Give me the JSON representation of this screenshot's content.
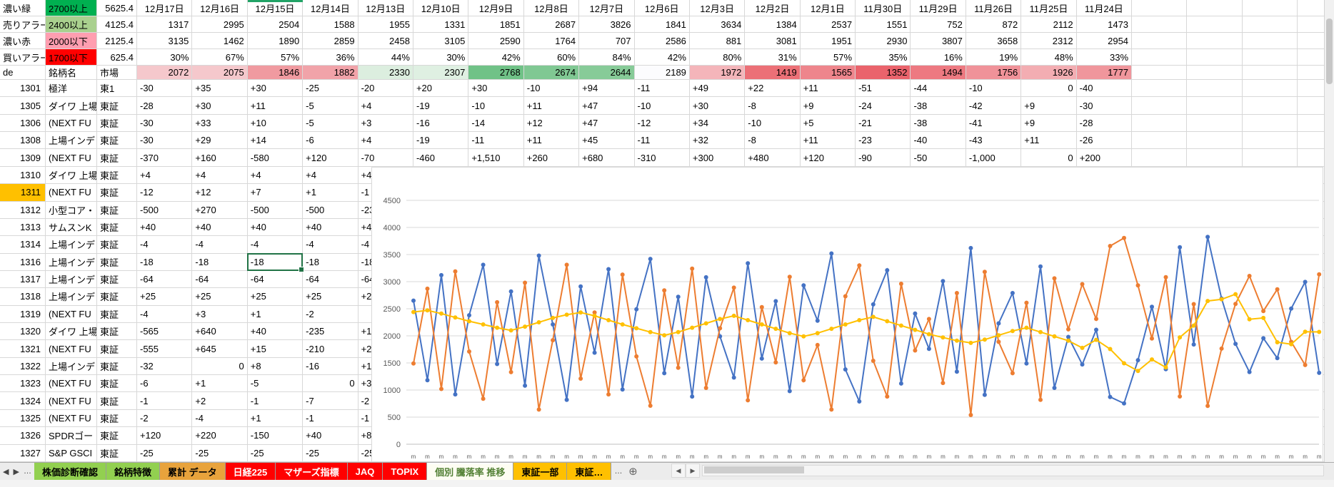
{
  "top_section": {
    "legend_rows": [
      {
        "label": "濃い緑",
        "threshold": "2700以上",
        "threshold_bg": "#00B050",
        "value": "5625.4"
      },
      {
        "label": "売りアラー",
        "threshold": "2400以上",
        "threshold_bg": "#A9D08E",
        "value": "4125.4"
      },
      {
        "label": "濃い赤",
        "threshold": "2000以下",
        "threshold_bg": "#FF9EB0",
        "value": "2125.4"
      },
      {
        "label": "買いアラー",
        "threshold": "1700以下",
        "threshold_bg": "#FF0000",
        "value": "625.4"
      }
    ],
    "dates": [
      "12月17日",
      "12月16日",
      "12月15日",
      "12月14日",
      "12月13日",
      "12月10日",
      "12月9日",
      "12月8日",
      "12月7日",
      "12月6日",
      "12月3日",
      "12月2日",
      "12月1日",
      "11月30日",
      "11月29日",
      "11月26日",
      "11月25日",
      "11月24日"
    ],
    "advancers": [
      "1317",
      "2995",
      "2504",
      "1588",
      "1955",
      "1331",
      "1851",
      "2687",
      "3826",
      "1841",
      "3634",
      "1384",
      "2537",
      "1551",
      "752",
      "872",
      "2112",
      "1473"
    ],
    "decliners": [
      "3135",
      "1462",
      "1890",
      "2859",
      "2458",
      "3105",
      "2590",
      "1764",
      "707",
      "2586",
      "881",
      "3081",
      "1951",
      "2930",
      "3807",
      "3658",
      "2312",
      "2954"
    ],
    "percents": [
      "30%",
      "67%",
      "57%",
      "36%",
      "44%",
      "30%",
      "42%",
      "60%",
      "84%",
      "42%",
      "80%",
      "31%",
      "57%",
      "35%",
      "16%",
      "19%",
      "48%",
      "33%"
    ],
    "summary_header": {
      "a": "de",
      "b": "銘柄名",
      "c": "市場"
    },
    "summary_cells": [
      {
        "v": "2072",
        "bg": "#F5C8CC"
      },
      {
        "v": "2075",
        "bg": "#F5C8CC"
      },
      {
        "v": "1846",
        "bg": "#F09AA0"
      },
      {
        "v": "1882",
        "bg": "#F1A3A9"
      },
      {
        "v": "2330",
        "bg": "#DCEEDF"
      },
      {
        "v": "2307",
        "bg": "#DFF0E2"
      },
      {
        "v": "2768",
        "bg": "#70C287"
      },
      {
        "v": "2674",
        "bg": "#80C893"
      },
      {
        "v": "2644",
        "bg": "#87CB98"
      },
      {
        "v": "2189",
        "bg": "#FCFCFE"
      },
      {
        "v": "1972",
        "bg": "#F4B5BA"
      },
      {
        "v": "1419",
        "bg": "#EC7077"
      },
      {
        "v": "1565",
        "bg": "#EE858C"
      },
      {
        "v": "1352",
        "bg": "#EA636C"
      },
      {
        "v": "1494",
        "bg": "#ED7981"
      },
      {
        "v": "1756",
        "bg": "#F09299"
      },
      {
        "v": "1926",
        "bg": "#F3ADB2"
      },
      {
        "v": "1777",
        "bg": "#F0969C"
      }
    ]
  },
  "stocks": {
    "highlight_code": "1311",
    "highlight_bg": "#FFC000",
    "rows": [
      {
        "code": "1301",
        "name": "極洋",
        "market": "東1",
        "values": [
          "-30",
          "+35",
          "+30",
          "-25",
          "-20",
          "+20",
          "+30",
          "-10",
          "+94",
          "-11",
          "+49",
          "+22",
          "+11",
          "-51",
          "-44",
          "-10",
          "0",
          "-40"
        ]
      },
      {
        "code": "1305",
        "name": "ダイワ 上場",
        "market": "東証",
        "values": [
          "-28",
          "+30",
          "+11",
          "-5",
          "+4",
          "-19",
          "-10",
          "+11",
          "+47",
          "-10",
          "+30",
          "-8",
          "+9",
          "-24",
          "-38",
          "-42",
          "+9",
          "-30"
        ]
      },
      {
        "code": "1306",
        "name": "(NEXT FU",
        "market": "東証",
        "values": [
          "-30",
          "+33",
          "+10",
          "-5",
          "+3",
          "-16",
          "-14",
          "+12",
          "+47",
          "-12",
          "+34",
          "-10",
          "+5",
          "-21",
          "-38",
          "-41",
          "+9",
          "-28"
        ]
      },
      {
        "code": "1308",
        "name": "上場インデ",
        "market": "東証",
        "values": [
          "-30",
          "+29",
          "+14",
          "-6",
          "+4",
          "-19",
          "-11",
          "+11",
          "+45",
          "-11",
          "+32",
          "-8",
          "+11",
          "-23",
          "-40",
          "-43",
          "+11",
          "-26"
        ]
      },
      {
        "code": "1309",
        "name": "(NEXT FU",
        "market": "東証",
        "values": [
          "-370",
          "+160",
          "-580",
          "+120",
          "-70",
          "-460",
          "+1,510",
          "+260",
          "+680",
          "-310",
          "+300",
          "+480",
          "+120",
          "-90",
          "-50",
          "-1,000",
          "0",
          "+200"
        ]
      },
      {
        "code": "1310",
        "name": "ダイワ 上場",
        "market": "東証",
        "values": [
          "+4",
          "+4",
          "+4",
          "+4",
          "+4"
        ]
      },
      {
        "code": "1311",
        "name": "(NEXT FU",
        "market": "東証",
        "values": [
          "-12",
          "+12",
          "+7",
          "+1",
          "-1"
        ]
      },
      {
        "code": "1312",
        "name": "小型コア・",
        "market": "東証",
        "values": [
          "-500",
          "+270",
          "-500",
          "-500",
          "-23"
        ]
      },
      {
        "code": "1313",
        "name": "サムスンK",
        "market": "東証",
        "values": [
          "+40",
          "+40",
          "+40",
          "+40",
          "+40"
        ]
      },
      {
        "code": "1314",
        "name": "上場インデ",
        "market": "東証",
        "values": [
          "-4",
          "-4",
          "-4",
          "-4",
          "-4"
        ]
      },
      {
        "code": "1316",
        "name": "上場インデ",
        "market": "東証",
        "values": [
          "-18",
          "-18",
          "-18",
          "-18",
          "-18"
        ]
      },
      {
        "code": "1317",
        "name": "上場インデ",
        "market": "東証",
        "values": [
          "-64",
          "-64",
          "-64",
          "-64",
          "-64"
        ]
      },
      {
        "code": "1318",
        "name": "上場インデ",
        "market": "東証",
        "values": [
          "+25",
          "+25",
          "+25",
          "+25",
          "+25"
        ]
      },
      {
        "code": "1319",
        "name": "(NEXT FU",
        "market": "東証",
        "values": [
          "-4",
          "+3",
          "+1",
          "-2",
          ""
        ]
      },
      {
        "code": "1320",
        "name": "ダイワ 上場",
        "market": "東証",
        "values": [
          "-565",
          "+640",
          "+40",
          "-235",
          "+19"
        ]
      },
      {
        "code": "1321",
        "name": "(NEXT FU",
        "market": "東証",
        "values": [
          "-555",
          "+645",
          "+15",
          "-210",
          "+22"
        ]
      },
      {
        "code": "1322",
        "name": "上場インデ",
        "market": "東証",
        "values": [
          "-32",
          "0",
          "+8",
          "-16",
          "+10"
        ]
      },
      {
        "code": "1323",
        "name": "(NEXT FU",
        "market": "東証",
        "values": [
          "-6",
          "+1",
          "-5",
          "0",
          "+3"
        ]
      },
      {
        "code": "1324",
        "name": "(NEXT FU",
        "market": "東証",
        "values": [
          "-1",
          "+2",
          "-1",
          "-7",
          "-2"
        ]
      },
      {
        "code": "1325",
        "name": "(NEXT FU",
        "market": "東証",
        "values": [
          "-2",
          "-4",
          "+1",
          "-1",
          "-1"
        ]
      },
      {
        "code": "1326",
        "name": "SPDRゴー",
        "market": "東証",
        "values": [
          "+120",
          "+220",
          "-150",
          "+40",
          "+85"
        ]
      },
      {
        "code": "1327",
        "name": "S&P GSCI",
        "market": "東証",
        "values": [
          "-25",
          "-25",
          "-25",
          "-25",
          "-25"
        ]
      }
    ]
  },
  "selection": {
    "code": "1316",
    "date": "12月15日",
    "value": "-18",
    "border_color": "#217346"
  },
  "chart_data": {
    "type": "line",
    "title": "",
    "ylim": [
      0,
      4500
    ],
    "y_ticks": [
      0,
      500,
      1000,
      1500,
      2000,
      2500,
      3000,
      3500,
      4000,
      4500
    ],
    "grid": true,
    "legend_position": "none",
    "marker": "circle",
    "x_labels_clipped": true,
    "values_estimated": true,
    "series": [
      {
        "name": "series-blue",
        "color": "#4472C4",
        "values": [
          2650,
          1180,
          3120,
          920,
          2380,
          3310,
          1480,
          2820,
          1080,
          3480,
          2210,
          820,
          2910,
          1690,
          3230,
          1010,
          2490,
          3420,
          1310,
          2720,
          880,
          3080,
          1990,
          1230,
          3340,
          1580,
          2640,
          980,
          2930,
          2280,
          3520,
          1380,
          790,
          2580,
          3210,
          1120,
          2410,
          1760,
          3010,
          1340,
          3620,
          910,
          2230,
          2790,
          1490,
          3280,
          1040,
          1980,
          1473,
          2112,
          872,
          752,
          1551,
          2537,
          1384,
          3634,
          1841,
          3826,
          2687,
          1851,
          1331,
          1955,
          1588,
          2504,
          2995,
          1317
        ]
      },
      {
        "name": "series-orange",
        "color": "#ED7D31",
        "values": [
          1490,
          2870,
          1020,
          3190,
          1710,
          840,
          2620,
          1330,
          2980,
          640,
          1920,
          3310,
          1210,
          2430,
          920,
          3130,
          1620,
          710,
          2840,
          1410,
          3240,
          1040,
          2140,
          2890,
          810,
          2530,
          1510,
          3090,
          1180,
          1830,
          640,
          2730,
          3300,
          1540,
          880,
          2960,
          1730,
          2310,
          1130,
          2790,
          540,
          3180,
          1890,
          1310,
          2610,
          820,
          3060,
          2120,
          2954,
          2312,
          3658,
          3807,
          2930,
          1951,
          3081,
          881,
          2586,
          707,
          1764,
          2590,
          3105,
          2458,
          2859,
          1890,
          1462,
          3135
        ]
      },
      {
        "name": "series-yellow",
        "color": "#FFC000",
        "values": [
          2440,
          2470,
          2410,
          2340,
          2270,
          2210,
          2150,
          2100,
          2170,
          2250,
          2330,
          2390,
          2430,
          2370,
          2290,
          2210,
          2140,
          2070,
          2010,
          2070,
          2150,
          2230,
          2310,
          2370,
          2290,
          2210,
          2130,
          2050,
          1990,
          2050,
          2130,
          2210,
          2290,
          2350,
          2270,
          2190,
          2110,
          2030,
          1970,
          1910,
          1870,
          1930,
          2010,
          2090,
          2150,
          2070,
          1990,
          1910,
          1777,
          1926,
          1756,
          1494,
          1352,
          1565,
          1419,
          1972,
          2189,
          2644,
          2674,
          2768,
          2307,
          2330,
          1882,
          1846,
          2075,
          2072
        ]
      }
    ]
  },
  "tab_bar": {
    "nav_prev": "◀",
    "nav_next": "▶",
    "overflow_left": "…",
    "overflow_right": "…",
    "add_sheet": "+",
    "tabs": [
      {
        "label": "株価診断確認",
        "bg": "#92D050",
        "color": "#000000",
        "active": false
      },
      {
        "label": "銘柄特徴",
        "bg": "#92D050",
        "color": "#000000",
        "active": false
      },
      {
        "label": "累計 データ",
        "bg": "#E8A33C",
        "color": "#000000",
        "active": false
      },
      {
        "label": "日経225",
        "bg": "#FF0000",
        "color": "#FFFFFF",
        "active": false
      },
      {
        "label": "マザーズ指標",
        "bg": "#FF0000",
        "color": "#FFFFFF",
        "active": false
      },
      {
        "label": "JAQ",
        "bg": "#FF0000",
        "color": "#FFFFFF",
        "active": false
      },
      {
        "label": "TOPIX",
        "bg": "#FF0000",
        "color": "#FFFFFF",
        "active": false
      },
      {
        "label": "個別 騰落率 推移",
        "bg": "#FDFDF2",
        "color": "#538135",
        "active": true
      },
      {
        "label": "東証一部",
        "bg": "#FFC000",
        "color": "#000000",
        "active": false
      },
      {
        "label": "東証…",
        "bg": "#FFC000",
        "color": "#000000",
        "active": false
      }
    ]
  }
}
